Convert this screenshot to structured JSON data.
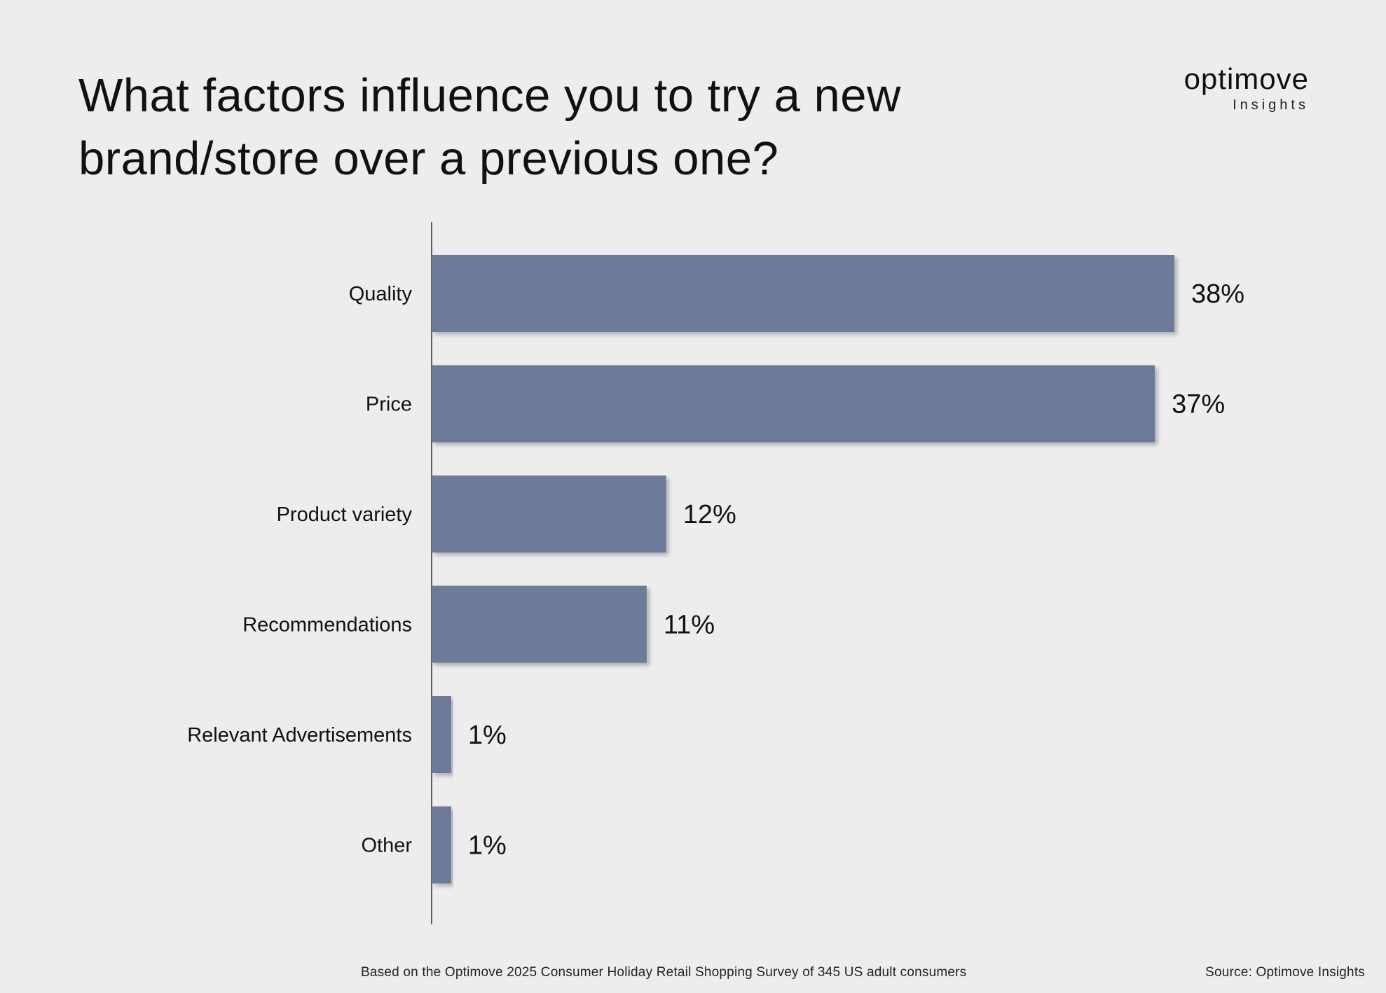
{
  "header": {
    "title": "What factors influence you to try a new brand/store over a previous one?"
  },
  "logo": {
    "word": "optimove",
    "sub": "Insights"
  },
  "footer": {
    "note": "Based on the Optimove 2025 Consumer Holiday Retail Shopping Survey of 345 US adult consumers",
    "source": "Source: Optimove Insights"
  },
  "chart_data": {
    "type": "bar",
    "orientation": "horizontal",
    "title": "What factors influence you to try a new brand/store over a previous one?",
    "categories": [
      "Quality",
      "Price",
      "Product variety",
      "Recommendations",
      "Relevant Advertisements",
      "Other"
    ],
    "values": [
      38,
      37,
      12,
      11,
      1,
      1
    ],
    "value_labels": [
      "38%",
      "37%",
      "12%",
      "11%",
      "1%",
      "1%"
    ],
    "unit": "%",
    "xlim": [
      0,
      38
    ],
    "grid": false,
    "legend": "none",
    "bar_color": "#6d7a9a"
  }
}
